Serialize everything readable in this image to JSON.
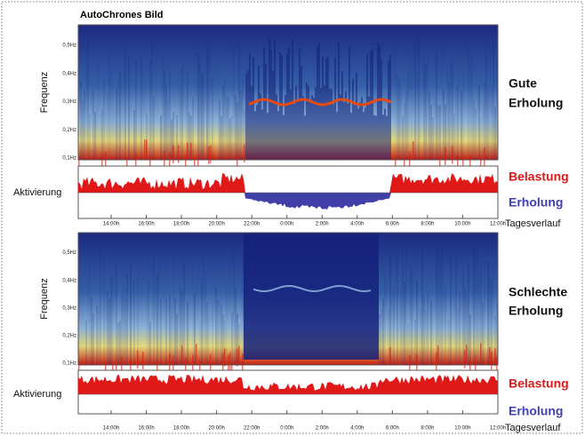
{
  "title": "AutoChrones Bild",
  "panels": [
    {
      "label_lines": [
        "Gute",
        "Erholung"
      ],
      "y_axis_label": "Frequenz",
      "y_ticks": [
        "0,5Hz",
        "0,4Hz",
        "0,3Hz",
        "0,2Hz",
        "0,1Hz"
      ],
      "activity_label": "Aktivierung",
      "legend": {
        "load": "Belastung",
        "recovery": "Erholung"
      },
      "x_ticks": [
        "14:00h",
        "16:00h",
        "18:00h",
        "20:00h",
        "22:00h",
        "0:00h",
        "2:00h",
        "4:00h",
        "6:00h",
        "8:00h",
        "10:00h",
        "12:00h"
      ],
      "x_axis_label": "Tagesverlauf"
    },
    {
      "label_lines": [
        "Schlechte",
        "Erholung"
      ],
      "y_axis_label": "Frequenz",
      "y_ticks": [
        "0,5Hz",
        "0,4Hz",
        "0,3Hz",
        "0,2Hz",
        "0,1Hz"
      ],
      "activity_label": "Aktivierung",
      "legend": {
        "load": "Belastung",
        "recovery": "Erholung"
      },
      "x_ticks": [
        "14:00h",
        "16:00h",
        "18:00h",
        "20:00h",
        "22:00h",
        "0:00h",
        "2:00h",
        "4:00h",
        "6:00h",
        "8:00h",
        "10:00h",
        "12:00h"
      ],
      "x_axis_label": "Tagesverlauf"
    }
  ]
}
